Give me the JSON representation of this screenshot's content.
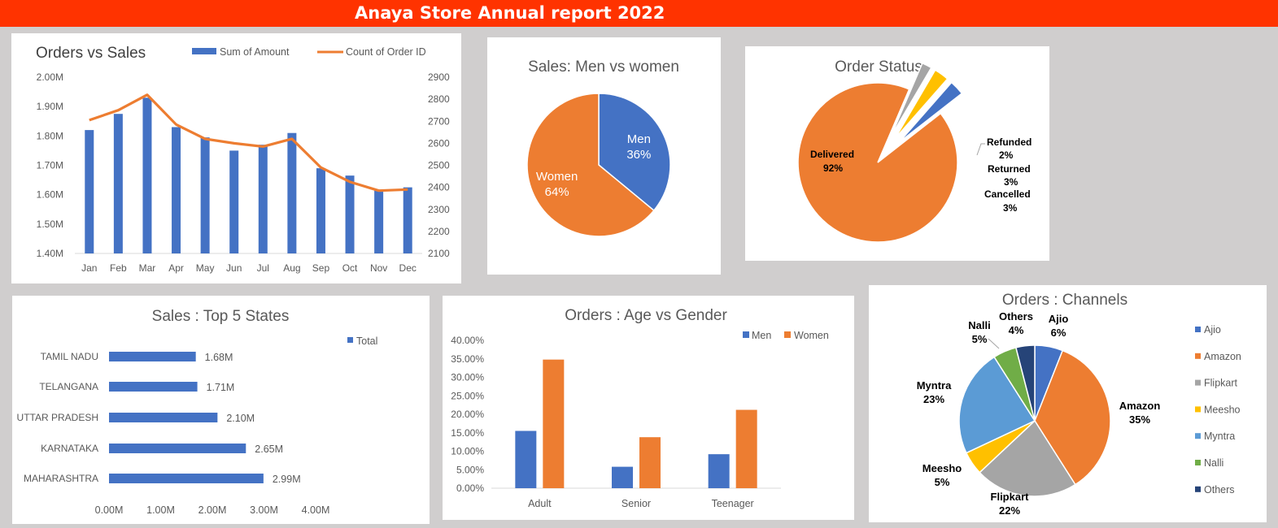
{
  "header": {
    "title": "Anaya Store Annual report 2022"
  },
  "chart_data": [
    {
      "id": "orders_vs_sales",
      "type": "bar+line",
      "title": "Orders vs Sales",
      "categories": [
        "Jan",
        "Feb",
        "Mar",
        "Apr",
        "May",
        "Jun",
        "Jul",
        "Aug",
        "Sep",
        "Oct",
        "Nov",
        "Dec"
      ],
      "series": [
        {
          "name": "Sum of Amount",
          "axis": "left",
          "type": "bar",
          "color": "#4472c4",
          "values": [
            1.82,
            1.875,
            1.93,
            1.83,
            1.795,
            1.75,
            1.77,
            1.81,
            1.69,
            1.665,
            1.615,
            1.625
          ]
        },
        {
          "name": "Count of Order ID",
          "axis": "right",
          "type": "line",
          "color": "#ed7d31",
          "values": [
            2705,
            2750,
            2820,
            2685,
            2620,
            2600,
            2585,
            2620,
            2490,
            2425,
            2385,
            2390
          ]
        }
      ],
      "left_axis": {
        "ylim": [
          1.4,
          2.0
        ],
        "ticks": [
          "1.40M",
          "1.50M",
          "1.60M",
          "1.70M",
          "1.80M",
          "1.90M",
          "2.00M"
        ]
      },
      "right_axis": {
        "ylim": [
          2100,
          2900
        ],
        "ticks": [
          "2100",
          "2200",
          "2300",
          "2400",
          "2500",
          "2600",
          "2700",
          "2800",
          "2900"
        ]
      },
      "legend_position": "top"
    },
    {
      "id": "sales_gender",
      "type": "pie",
      "title": "Sales: Men vs women",
      "slices": [
        {
          "label": "Men",
          "value": 36,
          "display": "36%",
          "color": "#4472c4"
        },
        {
          "label": "Women",
          "value": 64,
          "display": "64%",
          "color": "#ed7d31"
        }
      ]
    },
    {
      "id": "order_status",
      "type": "pie",
      "title": "Order Status",
      "slices": [
        {
          "label": "Delivered",
          "value": 92,
          "display": "92%",
          "color": "#ed7d31"
        },
        {
          "label": "Refunded",
          "value": 2,
          "display": "2%",
          "color": "#a5a5a5"
        },
        {
          "label": "Returned",
          "value": 3,
          "display": "3%",
          "color": "#ffc000"
        },
        {
          "label": "Cancelled",
          "value": 3,
          "display": "3%",
          "color": "#4472c4"
        }
      ]
    },
    {
      "id": "top_states",
      "type": "bar",
      "orientation": "horizontal",
      "title": "Sales : Top 5 States",
      "categories": [
        "TAMIL NADU",
        "TELANGANA",
        "UTTAR PRADESH",
        "KARNATAKA",
        "MAHARASHTRA"
      ],
      "series": [
        {
          "name": "Total",
          "color": "#4472c4",
          "values": [
            1.68,
            1.71,
            2.1,
            2.65,
            2.99
          ],
          "labels": [
            "1.68M",
            "1.71M",
            "2.10M",
            "2.65M",
            "2.99M"
          ]
        }
      ],
      "xlim": [
        0,
        4
      ],
      "x_ticks": [
        "0.00M",
        "1.00M",
        "2.00M",
        "3.00M",
        "4.00M"
      ],
      "legend_position": "top-right"
    },
    {
      "id": "age_gender",
      "type": "bar",
      "title": "Orders : Age vs Gender",
      "categories": [
        "Adult",
        "Senior",
        "Teenager"
      ],
      "series": [
        {
          "name": "Men",
          "color": "#4472c4",
          "values": [
            15.5,
            5.8,
            9.2
          ]
        },
        {
          "name": "Women",
          "color": "#ed7d31",
          "values": [
            34.8,
            13.8,
            21.2
          ]
        }
      ],
      "ylim": [
        0,
        40
      ],
      "y_ticks": [
        "0.00%",
        "5.00%",
        "10.00%",
        "15.00%",
        "20.00%",
        "25.00%",
        "30.00%",
        "35.00%",
        "40.00%"
      ],
      "legend_position": "top-right"
    },
    {
      "id": "channels",
      "type": "pie",
      "title": "Orders : Channels",
      "slices": [
        {
          "label": "Ajio",
          "value": 6,
          "display": "6%",
          "color": "#4472c4"
        },
        {
          "label": "Amazon",
          "value": 35,
          "display": "35%",
          "color": "#ed7d31"
        },
        {
          "label": "Flipkart",
          "value": 22,
          "display": "22%",
          "color": "#a5a5a5"
        },
        {
          "label": "Meesho",
          "value": 5,
          "display": "5%",
          "color": "#ffc000"
        },
        {
          "label": "Myntra",
          "value": 23,
          "display": "23%",
          "color": "#5b9bd5"
        },
        {
          "label": "Nalli",
          "value": 5,
          "display": "5%",
          "color": "#70ad47"
        },
        {
          "label": "Others",
          "value": 4,
          "display": "4%",
          "color": "#264478"
        }
      ],
      "legend_position": "right"
    }
  ]
}
